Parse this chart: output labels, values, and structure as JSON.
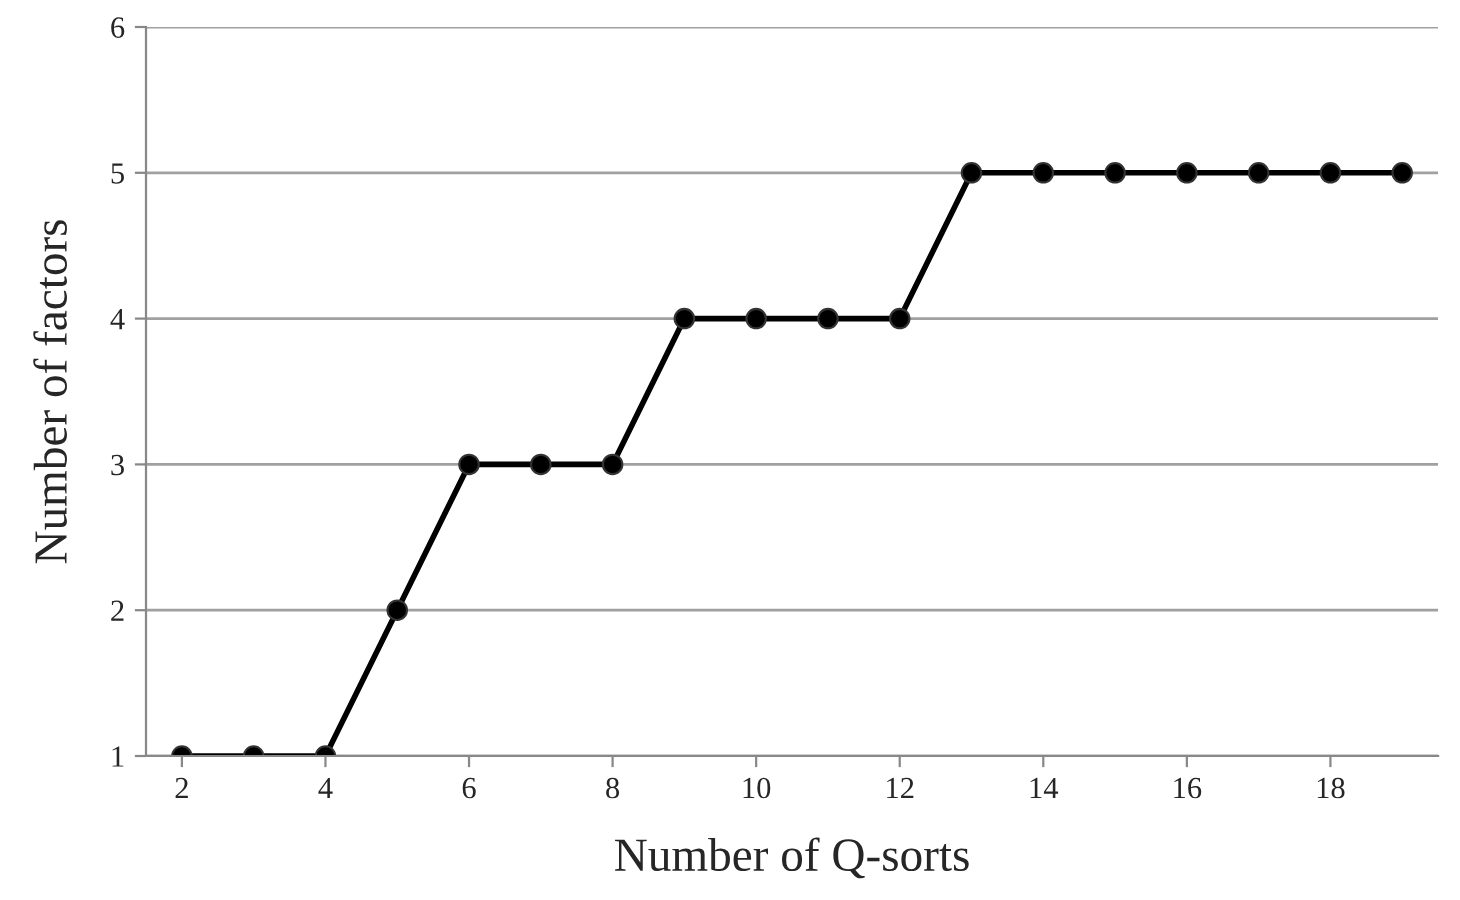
{
  "chart_data": {
    "type": "line",
    "xlabel": "Number of Q-sorts",
    "ylabel": "Number of factors",
    "x": [
      2,
      3,
      4,
      5,
      6,
      7,
      8,
      9,
      10,
      11,
      12,
      13,
      14,
      15,
      16,
      17,
      18,
      19
    ],
    "series": [
      {
        "color": "#000000",
        "values": [
          1,
          1,
          1,
          2,
          3,
          3,
          3,
          4,
          4,
          4,
          4,
          5,
          5,
          5,
          5,
          5,
          5,
          5
        ]
      }
    ],
    "xlim": [
      1.5,
      19.5
    ],
    "xticks": [
      2,
      4,
      6,
      8,
      10,
      12,
      14,
      16,
      18
    ],
    "ylim": [
      1,
      6
    ],
    "yticks": [
      1,
      2,
      3,
      4,
      5,
      6
    ],
    "grid": "y",
    "marker": "circle",
    "line_style": "solid"
  }
}
